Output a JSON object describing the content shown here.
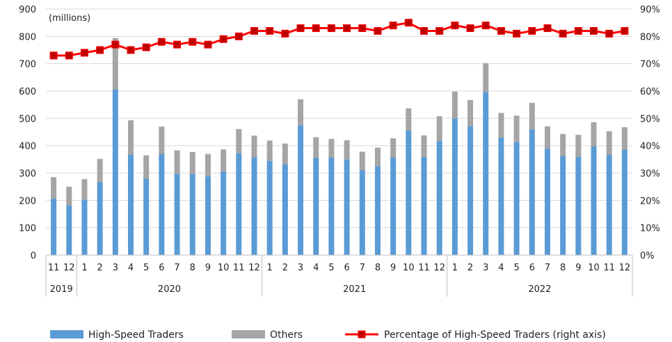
{
  "chart_data": {
    "type": "bar",
    "stacked": true,
    "unit_label": "(millions)",
    "colors": {
      "hst": "#5b9bd5",
      "others": "#a5a5a5",
      "pct": "#ff0000",
      "pct_marker": "#c00000"
    },
    "categories": [
      "11",
      "12",
      "1",
      "2",
      "3",
      "4",
      "5",
      "6",
      "7",
      "8",
      "9",
      "10",
      "11",
      "12",
      "1",
      "2",
      "3",
      "4",
      "5",
      "6",
      "7",
      "8",
      "9",
      "10",
      "11",
      "12",
      "1",
      "2",
      "3",
      "4",
      "5",
      "6",
      "7",
      "8",
      "9",
      "10",
      "11",
      "12"
    ],
    "years": [
      {
        "label": "2019",
        "count": 2
      },
      {
        "label": "2020",
        "count": 12
      },
      {
        "label": "2021",
        "count": 12
      },
      {
        "label": "2022",
        "count": 12
      }
    ],
    "series": [
      {
        "name": "High-Speed Traders",
        "axis": "left",
        "values": [
          207,
          182,
          203,
          267,
          606,
          368,
          280,
          370,
          297,
          297,
          288,
          306,
          373,
          357,
          345,
          332,
          475,
          356,
          357,
          350,
          310,
          325,
          357,
          455,
          358,
          418,
          500,
          472,
          596,
          430,
          414,
          460,
          390,
          363,
          360,
          398,
          366,
          385
        ]
      },
      {
        "name": "Others",
        "axis": "left",
        "values": [
          78,
          68,
          75,
          85,
          188,
          125,
          85,
          100,
          86,
          80,
          82,
          81,
          88,
          80,
          74,
          76,
          95,
          75,
          68,
          70,
          68,
          68,
          70,
          82,
          80,
          90,
          98,
          95,
          106,
          90,
          96,
          97,
          81,
          80,
          80,
          88,
          87,
          83
        ]
      },
      {
        "name": "Percentage of High-Speed Traders (right axis)",
        "axis": "right",
        "values": [
          73,
          73,
          74,
          75,
          77,
          75,
          76,
          78,
          77,
          78,
          77,
          79,
          80,
          82,
          82,
          81,
          83,
          83,
          83,
          83,
          83,
          82,
          84,
          85,
          82,
          82,
          84,
          83,
          84,
          82,
          81,
          82,
          83,
          81,
          82,
          82,
          81,
          82
        ]
      }
    ],
    "y_left": {
      "min": 0,
      "max": 900,
      "step": 100,
      "tick_labels": [
        "0",
        "100",
        "200",
        "300",
        "400",
        "500",
        "600",
        "700",
        "800",
        "900"
      ]
    },
    "y_right": {
      "min": 0,
      "max": 90,
      "step": 10,
      "tick_labels": [
        "0%",
        "10%",
        "20%",
        "30%",
        "40%",
        "50%",
        "60%",
        "70%",
        "80%",
        "90%"
      ]
    },
    "grid": true,
    "legend_position": "bottom"
  }
}
